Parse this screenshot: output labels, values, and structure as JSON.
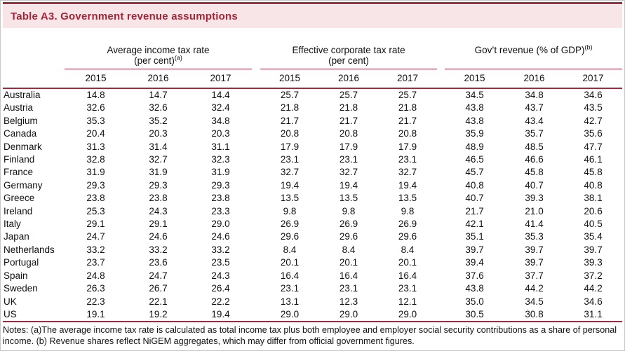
{
  "colors": {
    "accent": "#a4273b",
    "title_text": "#a32638",
    "band_background": "#f7e5e7",
    "top_rule": "#a8293d"
  },
  "title": "Table A3. Government revenue assumptions",
  "table": {
    "groups": [
      {
        "l1": "Average income tax rate",
        "l1sup": "",
        "l2": "(per cent)",
        "l2sup": "(a)"
      },
      {
        "l1": "Effective corporate tax rate",
        "l1sup": "",
        "l2": "(per cent)",
        "l2sup": ""
      },
      {
        "l1": "Gov’t revenue (% of GDP)",
        "l1sup": "(b)",
        "l2": "",
        "l2sup": ""
      }
    ],
    "years": [
      "2015",
      "2016",
      "2017"
    ],
    "rows": [
      {
        "country": "Australia",
        "values": [
          "14.8",
          "14.7",
          "14.4",
          "25.7",
          "25.7",
          "25.7",
          "34.5",
          "34.8",
          "34.6"
        ]
      },
      {
        "country": "Austria",
        "values": [
          "32.6",
          "32.6",
          "32.4",
          "21.8",
          "21.8",
          "21.8",
          "43.8",
          "43.7",
          "43.5"
        ]
      },
      {
        "country": "Belgium",
        "values": [
          "35.3",
          "35.2",
          "34.8",
          "21.7",
          "21.7",
          "21.7",
          "43.8",
          "43.4",
          "42.7"
        ]
      },
      {
        "country": "Canada",
        "values": [
          "20.4",
          "20.3",
          "20.3",
          "20.8",
          "20.8",
          "20.8",
          "35.9",
          "35.7",
          "35.6"
        ]
      },
      {
        "country": "Denmark",
        "values": [
          "31.3",
          "31.4",
          "31.1",
          "17.9",
          "17.9",
          "17.9",
          "48.9",
          "48.5",
          "47.7"
        ]
      },
      {
        "country": "Finland",
        "values": [
          "32.8",
          "32.7",
          "32.3",
          "23.1",
          "23.1",
          "23.1",
          "46.5",
          "46.6",
          "46.1"
        ]
      },
      {
        "country": "France",
        "values": [
          "31.9",
          "31.9",
          "31.9",
          "32.7",
          "32.7",
          "32.7",
          "45.7",
          "45.8",
          "45.8"
        ]
      },
      {
        "country": "Germany",
        "values": [
          "29.3",
          "29.3",
          "29.3",
          "19.4",
          "19.4",
          "19.4",
          "40.8",
          "40.7",
          "40.8"
        ]
      },
      {
        "country": "Greece",
        "values": [
          "23.8",
          "23.8",
          "23.8",
          "13.5",
          "13.5",
          "13.5",
          "40.7",
          "39.3",
          "38.1"
        ]
      },
      {
        "country": "Ireland",
        "values": [
          "25.3",
          "24.3",
          "23.3",
          "9.8",
          "9.8",
          "9.8",
          "21.7",
          "21.0",
          "20.6"
        ]
      },
      {
        "country": "Italy",
        "values": [
          "29.1",
          "29.1",
          "29.0",
          "26.9",
          "26.9",
          "26.9",
          "42.1",
          "41.4",
          "40.5"
        ]
      },
      {
        "country": "Japan",
        "values": [
          "24.7",
          "24.6",
          "24.6",
          "29.6",
          "29.6",
          "29.6",
          "35.1",
          "35.3",
          "35.4"
        ]
      },
      {
        "country": "Netherlands",
        "values": [
          "33.2",
          "33.2",
          "33.2",
          "8.4",
          "8.4",
          "8.4",
          "39.7",
          "39.7",
          "39.7"
        ]
      },
      {
        "country": "Portugal",
        "values": [
          "23.7",
          "23.6",
          "23.5",
          "20.1",
          "20.1",
          "20.1",
          "39.4",
          "39.7",
          "39.3"
        ]
      },
      {
        "country": "Spain",
        "values": [
          "24.8",
          "24.7",
          "24.3",
          "16.4",
          "16.4",
          "16.4",
          "37.6",
          "37.7",
          "37.2"
        ]
      },
      {
        "country": "Sweden",
        "values": [
          "26.3",
          "26.7",
          "26.4",
          "23.1",
          "23.1",
          "23.1",
          "43.8",
          "44.2",
          "44.2"
        ]
      },
      {
        "country": "UK",
        "values": [
          "22.3",
          "22.1",
          "22.2",
          "13.1",
          "12.3",
          "12.1",
          "35.0",
          "34.5",
          "34.6"
        ]
      },
      {
        "country": "US",
        "values": [
          "19.1",
          "19.2",
          "19.4",
          "29.0",
          "29.0",
          "29.0",
          "30.5",
          "30.8",
          "31.1"
        ]
      }
    ]
  },
  "notes": "Notes: (a)The average income tax rate is calculated as total income tax plus both employee and employer social security contributions as a share of personal income. (b) Revenue shares reflect NiGEM aggregates, which may differ from official government figures."
}
